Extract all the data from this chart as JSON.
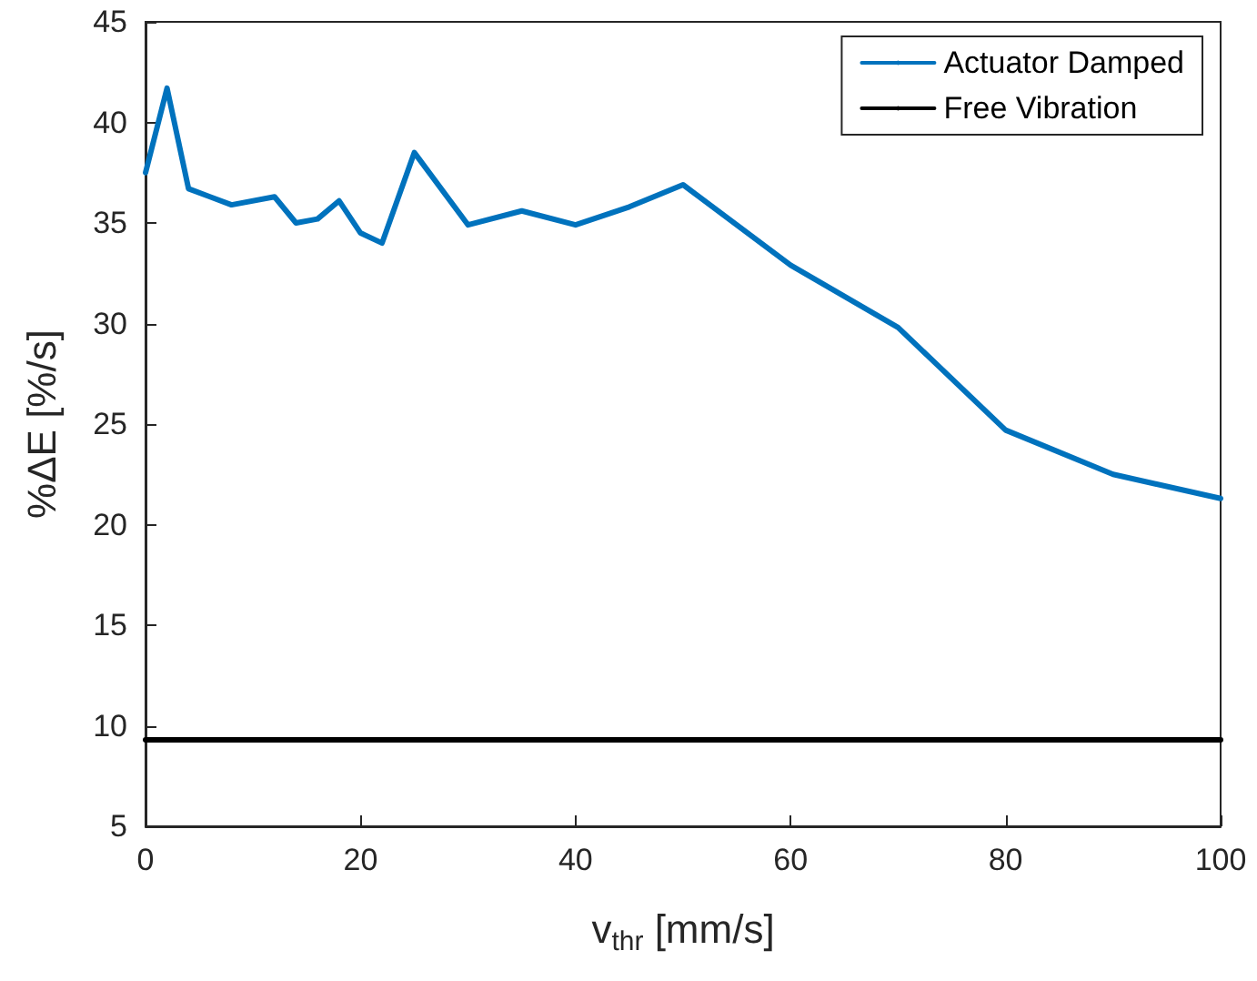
{
  "chart_data": {
    "type": "line",
    "xlabel": "v$_{thr}$ [mm/s]",
    "ylabel": "%ΔE [%/s]",
    "xlim": [
      0,
      100
    ],
    "xticks": [
      0,
      20,
      40,
      60,
      80,
      100
    ],
    "ylim": [
      5,
      45
    ],
    "yticks": [
      5,
      10,
      15,
      20,
      25,
      30,
      35,
      40,
      45
    ],
    "grid": false,
    "legend": "top right",
    "marker": "none",
    "line_style": "solid",
    "series": [
      {
        "name": "Actuator Damped",
        "color": "#0072bd",
        "x": [
          0,
          2,
          4,
          6,
          8,
          12,
          14,
          16,
          18,
          20,
          22,
          25,
          30,
          35,
          40,
          45,
          50,
          60,
          70,
          80,
          90,
          100
        ],
        "values": [
          37.5,
          41.7,
          36.7,
          36.3,
          35.9,
          36.3,
          35.0,
          35.2,
          36.1,
          34.5,
          34.0,
          38.5,
          34.9,
          35.6,
          34.9,
          35.8,
          36.9,
          32.9,
          29.8,
          24.7,
          22.5,
          21.3
        ]
      },
      {
        "name": "Free Vibration",
        "color": "#000000",
        "x": [
          0,
          100
        ],
        "values": [
          9.3,
          9.3
        ]
      }
    ]
  }
}
